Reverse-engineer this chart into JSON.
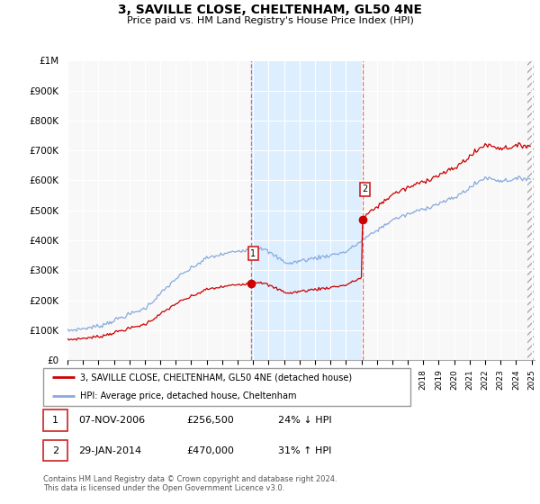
{
  "title": "3, SAVILLE CLOSE, CHELTENHAM, GL50 4NE",
  "subtitle": "Price paid vs. HM Land Registry's House Price Index (HPI)",
  "y_min": 0,
  "y_max": 1000000,
  "y_ticks": [
    0,
    100000,
    200000,
    300000,
    400000,
    500000,
    600000,
    700000,
    800000,
    900000,
    1000000
  ],
  "y_tick_labels": [
    "£0",
    "£100K",
    "£200K",
    "£300K",
    "£400K",
    "£500K",
    "£600K",
    "£700K",
    "£800K",
    "£900K",
    "£1M"
  ],
  "transaction1_date": 2006.86,
  "transaction1_price": 256500,
  "transaction2_date": 2014.08,
  "transaction2_price": 470000,
  "shaded_color": "#ddeeff",
  "line1_color": "#cc0000",
  "line2_color": "#88aadd",
  "vline_color": "#dd4444",
  "marker_color": "#cc0000",
  "legend1_label": "3, SAVILLE CLOSE, CHELTENHAM, GL50 4NE (detached house)",
  "legend2_label": "HPI: Average price, detached house, Cheltenham",
  "note1_date": "07-NOV-2006",
  "note1_price": "£256,500",
  "note1_pct": "24% ↓ HPI",
  "note2_date": "29-JAN-2014",
  "note2_price": "£470,000",
  "note2_pct": "31% ↑ HPI",
  "footer": "Contains HM Land Registry data © Crown copyright and database right 2024.\nThis data is licensed under the Open Government Licence v3.0.",
  "background_color": "#ffffff",
  "plot_bg_color": "#f8f8f8"
}
